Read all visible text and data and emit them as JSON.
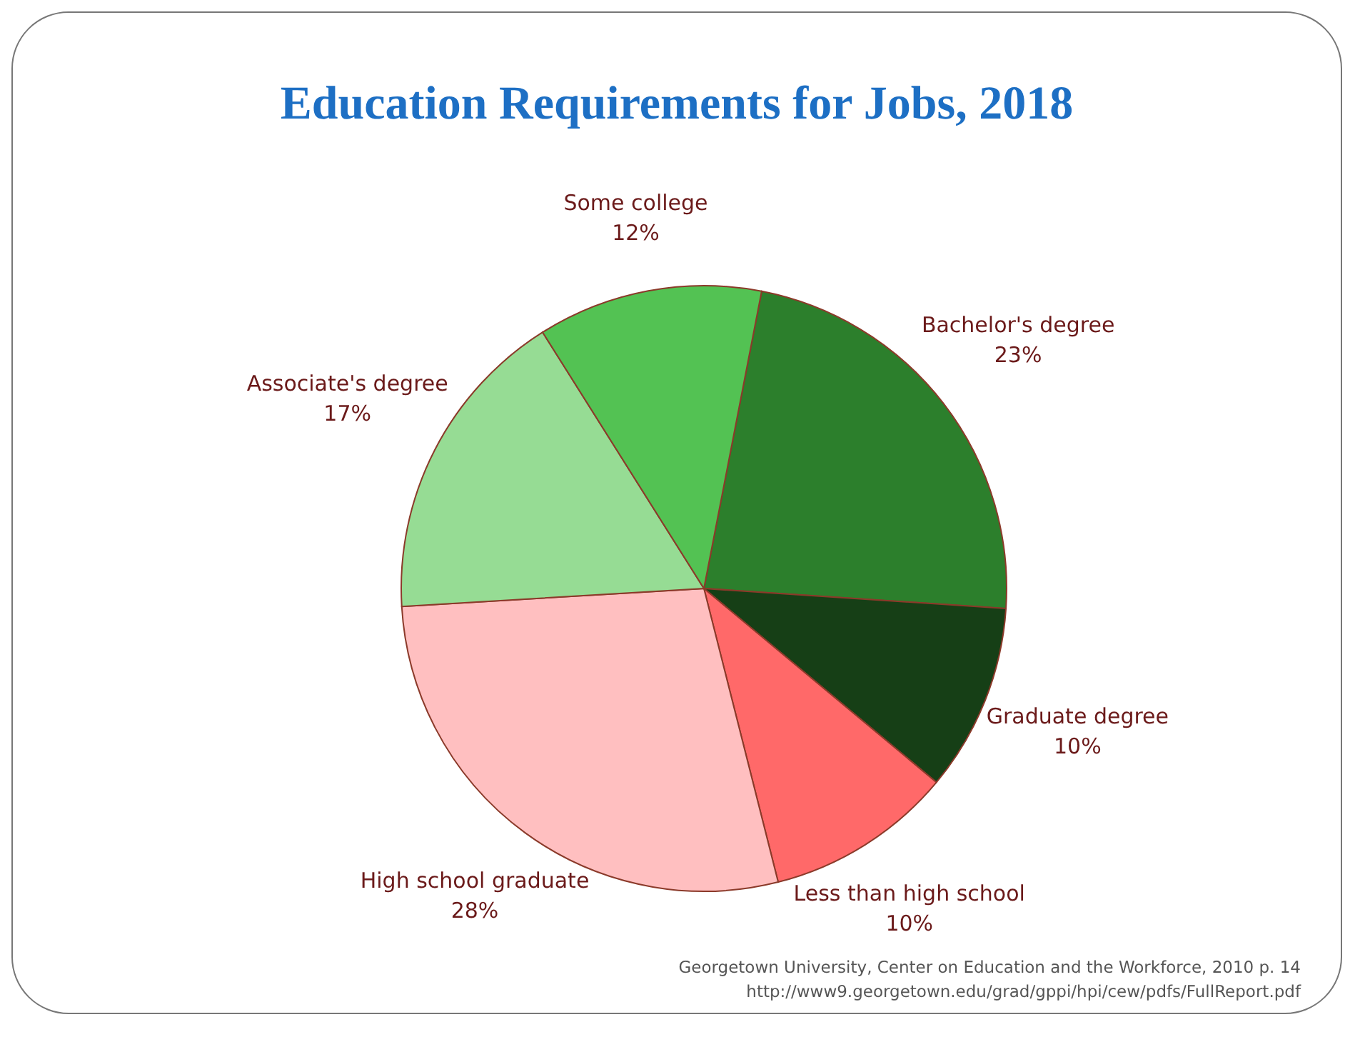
{
  "chart_data": {
    "type": "pie",
    "title": "Education Requirements for Jobs, 2018",
    "categories": [
      "Bachelor's degree",
      "Graduate degree",
      "Less than high school",
      "High school graduate",
      "Associate's degree",
      "Some college"
    ],
    "values": [
      23,
      10,
      10,
      28,
      17,
      12
    ],
    "value_labels": [
      "23%",
      "10%",
      "10%",
      "28%",
      "17%",
      "12%"
    ],
    "colors": [
      "#2c7f2c",
      "#163f16",
      "#ff6969",
      "#ffbfc0",
      "#96dc94",
      "#53c253"
    ],
    "legend": false,
    "annotations": [
      "Georgetown University, Center on Education and the Workforce, 2010 p. 14",
      "http://www9.georgetown.edu/grad/gppi/hpi/cew/pdfs/FullReport.pdf"
    ]
  }
}
